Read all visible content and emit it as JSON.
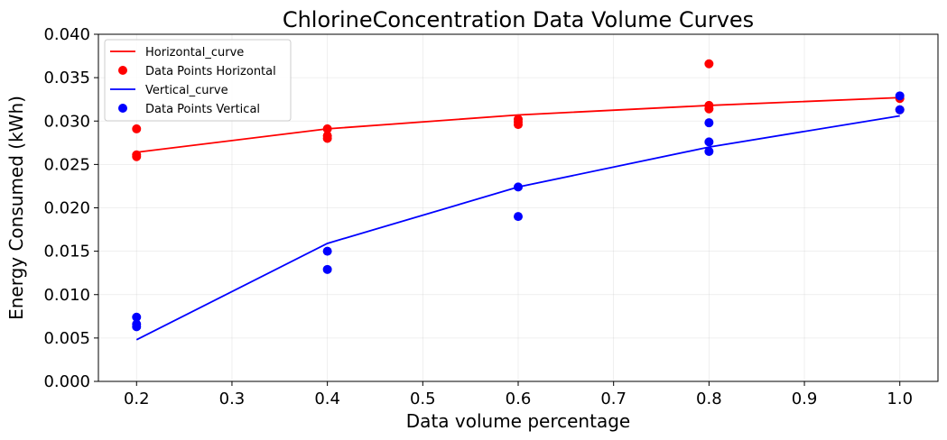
{
  "chart_data": {
    "type": "line",
    "title": "ChlorineConcentration Data Volume Curves",
    "xlabel": "Data volume percentage",
    "ylabel": "Energy Consumed (kWh)",
    "xlim": [
      0.16,
      1.04
    ],
    "ylim": [
      0.0,
      0.04
    ],
    "xticks": [
      0.2,
      0.3,
      0.4,
      0.5,
      0.6,
      0.7,
      0.8,
      0.9,
      1.0
    ],
    "xtick_labels": [
      "0.2",
      "0.3",
      "0.4",
      "0.5",
      "0.6",
      "0.7",
      "0.8",
      "0.9",
      "1.0"
    ],
    "yticks": [
      0.0,
      0.005,
      0.01,
      0.015,
      0.02,
      0.025,
      0.03,
      0.035,
      0.04
    ],
    "ytick_labels": [
      "0.000",
      "0.005",
      "0.010",
      "0.015",
      "0.020",
      "0.025",
      "0.030",
      "0.035",
      "0.040"
    ],
    "grid": true,
    "legend_position": "top-left",
    "series": [
      {
        "name": "Horizontal_curve",
        "kind": "line",
        "color": "#ff0000",
        "x": [
          0.2,
          0.4,
          0.6,
          0.8,
          1.0
        ],
        "y": [
          0.0264,
          0.0291,
          0.0307,
          0.0318,
          0.0327
        ]
      },
      {
        "name": "Data Points Horizontal",
        "kind": "scatter",
        "color": "#ff0000",
        "x": [
          0.2,
          0.2,
          0.2,
          0.4,
          0.4,
          0.4,
          0.6,
          0.6,
          0.6,
          0.8,
          0.8,
          0.8,
          1.0,
          1.0
        ],
        "y": [
          0.0291,
          0.0261,
          0.0259,
          0.0291,
          0.0283,
          0.028,
          0.0302,
          0.0299,
          0.0296,
          0.0366,
          0.0318,
          0.0314,
          0.0326,
          0.0313
        ]
      },
      {
        "name": "Vertical_curve",
        "kind": "line",
        "color": "#0000ff",
        "x": [
          0.2,
          0.4,
          0.6,
          0.8,
          1.0
        ],
        "y": [
          0.0048,
          0.0159,
          0.0224,
          0.027,
          0.0306
        ]
      },
      {
        "name": "Data Points Vertical",
        "kind": "scatter",
        "color": "#0000ff",
        "x": [
          0.2,
          0.2,
          0.2,
          0.4,
          0.4,
          0.6,
          0.6,
          0.8,
          0.8,
          0.8,
          1.0,
          1.0
        ],
        "y": [
          0.0074,
          0.0066,
          0.0063,
          0.015,
          0.0129,
          0.0224,
          0.019,
          0.0298,
          0.0276,
          0.0265,
          0.0329,
          0.0313
        ]
      }
    ]
  }
}
